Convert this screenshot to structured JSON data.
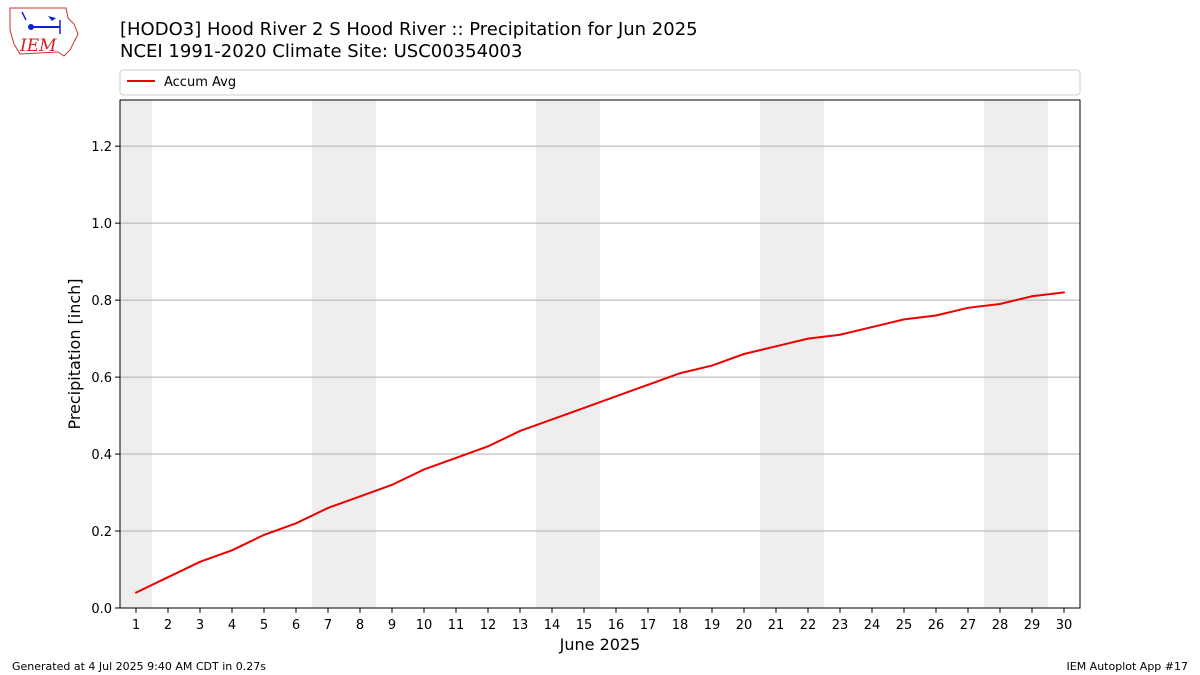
{
  "header": {
    "title_line1": "[HODO3] Hood River 2 S Hood River :: Precipitation for Jun 2025",
    "title_line2": "NCEI 1991-2020 Climate Site: USC00354003",
    "logo_text": "IEM"
  },
  "footer": {
    "left": "Generated at 4 Jul 2025 9:40 AM CDT in 0.27s",
    "right": "IEM Autoplot App #17"
  },
  "colors": {
    "series": "#ee0000",
    "weekend_band": "#eeeeee",
    "grid": "#b0b0b0",
    "logo": "#cc2222"
  },
  "chart_data": {
    "type": "line",
    "xlabel": "June 2025",
    "ylabel": "Precipitation [inch]",
    "xlim": [
      0.5,
      30.5
    ],
    "ylim": [
      0,
      1.32
    ],
    "x_ticks": [
      1,
      2,
      3,
      4,
      5,
      6,
      7,
      8,
      9,
      10,
      11,
      12,
      13,
      14,
      15,
      16,
      17,
      18,
      19,
      20,
      21,
      22,
      23,
      24,
      25,
      26,
      27,
      28,
      29,
      30
    ],
    "y_ticks": [
      "0.0",
      "0.2",
      "0.4",
      "0.6",
      "0.8",
      "1.0",
      "1.2"
    ],
    "grid": "horizontal",
    "legend_position": "top",
    "weekend_bands": [
      [
        0.5,
        1.5
      ],
      [
        6.5,
        8.5
      ],
      [
        13.5,
        15.5
      ],
      [
        20.5,
        22.5
      ],
      [
        27.5,
        29.5
      ]
    ],
    "series": [
      {
        "name": "Accum Avg",
        "x": [
          1,
          2,
          3,
          4,
          5,
          6,
          7,
          8,
          9,
          10,
          11,
          12,
          13,
          14,
          15,
          16,
          17,
          18,
          19,
          20,
          21,
          22,
          23,
          24,
          25,
          26,
          27,
          28,
          29,
          30
        ],
        "values": [
          0.04,
          0.08,
          0.12,
          0.15,
          0.19,
          0.22,
          0.26,
          0.29,
          0.32,
          0.36,
          0.39,
          0.42,
          0.46,
          0.49,
          0.52,
          0.55,
          0.58,
          0.61,
          0.63,
          0.66,
          0.68,
          0.7,
          0.71,
          0.73,
          0.75,
          0.76,
          0.78,
          0.79,
          0.81,
          0.82
        ]
      }
    ]
  }
}
